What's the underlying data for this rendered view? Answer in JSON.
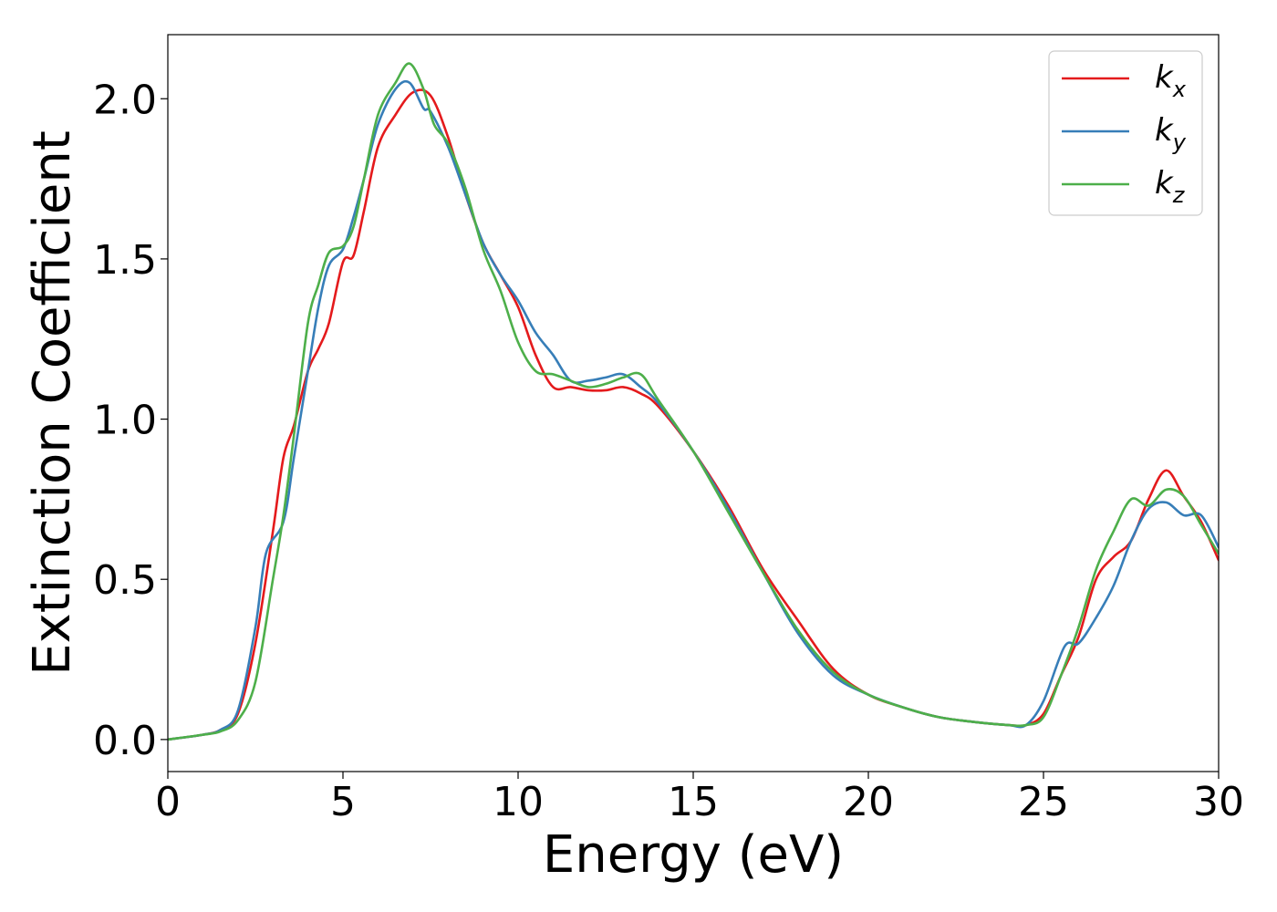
{
  "chart_data": {
    "type": "line",
    "xlabel": "Energy (eV)",
    "ylabel": "Extinction Coefficient",
    "xlim": [
      0,
      30
    ],
    "ylim": [
      -0.1,
      2.2
    ],
    "xticks": [
      0,
      5,
      10,
      15,
      20,
      25,
      30
    ],
    "xtick_labels": [
      "0",
      "5",
      "10",
      "15",
      "20",
      "25",
      "30"
    ],
    "yticks": [
      0.0,
      0.5,
      1.0,
      1.5,
      2.0
    ],
    "ytick_labels": [
      "0.0",
      "0.5",
      "1.0",
      "1.5",
      "2.0"
    ],
    "grid": false,
    "legend": {
      "position": "top-right"
    },
    "series": [
      {
        "name": "k_x",
        "label_main": "k",
        "label_sub": "x",
        "color": "#e41a1c",
        "x": [
          0,
          1,
          1.5,
          2,
          2.5,
          3,
          3.3,
          3.6,
          4,
          4.3,
          4.6,
          5,
          5.3,
          5.6,
          6,
          6.5,
          7,
          7.5,
          8,
          8.5,
          9,
          9.5,
          10,
          10.5,
          11,
          11.5,
          12,
          12.5,
          13,
          13.5,
          14,
          15,
          16,
          17,
          18,
          19,
          20,
          21,
          22,
          23,
          24,
          24.5,
          25,
          25.5,
          26,
          26.5,
          27,
          27.5,
          28,
          28.5,
          29,
          29.5,
          30
        ],
        "y": [
          0,
          0.015,
          0.03,
          0.08,
          0.3,
          0.65,
          0.88,
          0.98,
          1.15,
          1.22,
          1.3,
          1.49,
          1.51,
          1.65,
          1.85,
          1.95,
          2.02,
          2.01,
          1.88,
          1.7,
          1.55,
          1.45,
          1.35,
          1.2,
          1.1,
          1.1,
          1.09,
          1.09,
          1.1,
          1.08,
          1.04,
          0.9,
          0.73,
          0.53,
          0.37,
          0.22,
          0.14,
          0.1,
          0.07,
          0.055,
          0.045,
          0.045,
          0.08,
          0.2,
          0.32,
          0.5,
          0.57,
          0.62,
          0.75,
          0.84,
          0.76,
          0.68,
          0.56
        ]
      },
      {
        "name": "k_y",
        "label_main": "k",
        "label_sub": "y",
        "color": "#377eb8",
        "x": [
          0,
          1,
          1.5,
          2,
          2.5,
          2.8,
          3.3,
          3.6,
          4,
          4.3,
          4.6,
          5,
          5.3,
          5.6,
          6,
          6.5,
          6.9,
          7.3,
          7.5,
          8,
          8.5,
          9,
          9.5,
          10,
          10.5,
          11,
          11.5,
          12,
          12.5,
          13,
          13.5,
          14,
          15,
          16,
          17,
          18,
          19,
          20,
          21,
          22,
          23,
          24,
          24.5,
          25,
          25.6,
          26,
          26.5,
          27,
          27.5,
          28,
          28.5,
          29,
          29.5,
          30
        ],
        "y": [
          0,
          0.015,
          0.03,
          0.09,
          0.35,
          0.58,
          0.68,
          0.88,
          1.15,
          1.35,
          1.48,
          1.53,
          1.63,
          1.75,
          1.92,
          2.03,
          2.05,
          1.97,
          1.96,
          1.85,
          1.7,
          1.55,
          1.45,
          1.37,
          1.27,
          1.2,
          1.12,
          1.12,
          1.13,
          1.14,
          1.1,
          1.05,
          0.9,
          0.72,
          0.52,
          0.33,
          0.2,
          0.14,
          0.1,
          0.07,
          0.055,
          0.045,
          0.045,
          0.12,
          0.29,
          0.3,
          0.38,
          0.48,
          0.62,
          0.72,
          0.74,
          0.7,
          0.7,
          0.6
        ]
      },
      {
        "name": "k_z",
        "label_main": "k",
        "label_sub": "z",
        "color": "#4daf4a",
        "x": [
          0,
          1,
          1.5,
          2,
          2.5,
          3,
          3.3,
          3.6,
          4,
          4.3,
          4.6,
          5,
          5.3,
          5.6,
          6,
          6.5,
          6.9,
          7.3,
          7.6,
          8,
          8.5,
          9,
          9.5,
          10,
          10.5,
          11,
          11.5,
          12,
          12.5,
          13,
          13.5,
          14,
          15,
          16,
          17,
          18,
          19,
          20,
          21,
          22,
          23,
          24,
          24.5,
          25,
          25.5,
          26,
          26.5,
          27,
          27.5,
          28,
          28.5,
          29,
          29.5,
          30
        ],
        "y": [
          0,
          0.015,
          0.025,
          0.06,
          0.18,
          0.5,
          0.7,
          0.95,
          1.3,
          1.42,
          1.52,
          1.54,
          1.6,
          1.75,
          1.95,
          2.05,
          2.11,
          2.03,
          1.92,
          1.86,
          1.72,
          1.53,
          1.4,
          1.24,
          1.15,
          1.14,
          1.12,
          1.1,
          1.11,
          1.13,
          1.14,
          1.06,
          0.9,
          0.71,
          0.52,
          0.34,
          0.21,
          0.14,
          0.1,
          0.07,
          0.055,
          0.045,
          0.045,
          0.07,
          0.2,
          0.35,
          0.53,
          0.65,
          0.75,
          0.73,
          0.78,
          0.76,
          0.67,
          0.58
        ]
      }
    ]
  }
}
